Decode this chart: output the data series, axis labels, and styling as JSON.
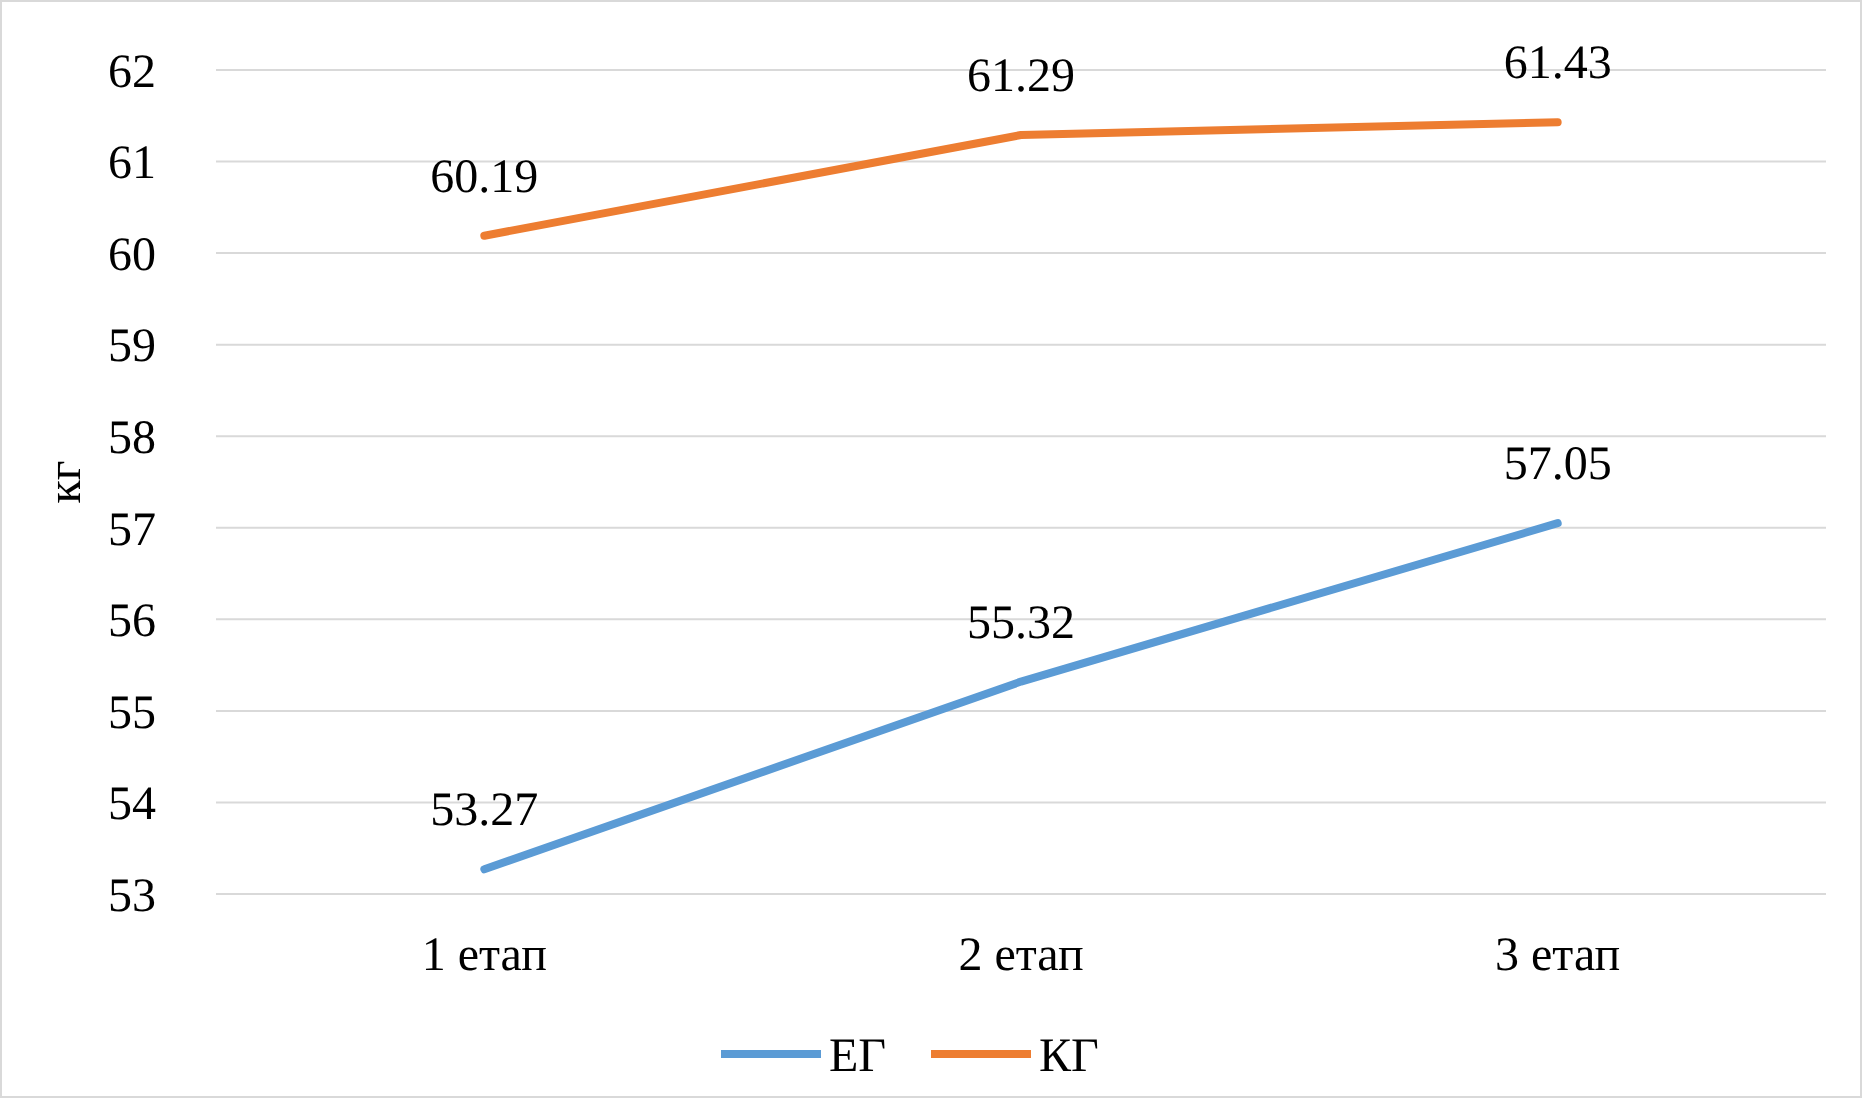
{
  "chart_data": {
    "type": "line",
    "ylabel": "кг",
    "categories": [
      "1 етап",
      "2 етап",
      "3 етап"
    ],
    "series": [
      {
        "name": "ЕГ",
        "color": "#5b9bd5",
        "values": [
          53.27,
          55.32,
          57.05
        ]
      },
      {
        "name": "КГ",
        "color": "#ed7d31",
        "values": [
          60.19,
          61.29,
          61.43
        ]
      }
    ],
    "ylim": [
      53,
      62
    ],
    "yticks": [
      53,
      54,
      55,
      56,
      57,
      58,
      59,
      60,
      61,
      62
    ],
    "grid": "y",
    "legend": "bottom",
    "data_labels": true,
    "marker": "none",
    "line_style": "solid"
  }
}
